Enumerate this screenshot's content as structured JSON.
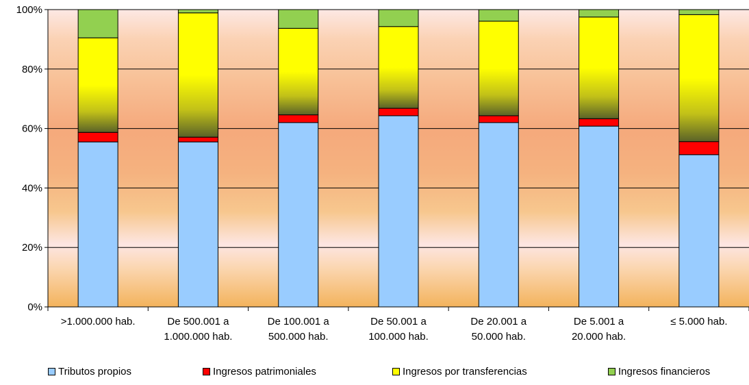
{
  "chart_data": {
    "type": "bar",
    "stacked": "percent",
    "title": "",
    "xlabel": "",
    "ylabel": "",
    "ylim": [
      0,
      100
    ],
    "yticks": [
      "0%",
      "20%",
      "40%",
      "60%",
      "80%",
      "100%"
    ],
    "grid": true,
    "legend_position": "bottom",
    "categories": [
      [
        ">1.000.000 hab."
      ],
      [
        "De 500.001 a",
        "1.000.000 hab."
      ],
      [
        "De 100.001 a",
        "500.000 hab."
      ],
      [
        "De 50.001 a",
        "100.000 hab."
      ],
      [
        "De 20.001 a",
        "50.000 hab."
      ],
      [
        "De 5.001 a",
        "20.000 hab."
      ],
      [
        "≤ 5.000 hab."
      ]
    ],
    "series": [
      {
        "name": "Tributos propios",
        "color": "#99ccff",
        "values": [
          55.5,
          55.5,
          62.0,
          64.3,
          62.0,
          60.8,
          51.2
        ]
      },
      {
        "name": "Ingresos patrimoniales",
        "color": "#ff0000",
        "values": [
          3.2,
          1.6,
          2.6,
          2.5,
          2.3,
          2.5,
          4.4
        ]
      },
      {
        "name": "Ingresos por transferencias",
        "color": "#ffff00",
        "values": [
          31.8,
          41.8,
          29.1,
          27.5,
          31.8,
          34.2,
          42.7
        ]
      },
      {
        "name": "Ingresos financieros",
        "color": "#92d050",
        "values": [
          9.5,
          1.1,
          6.3,
          5.7,
          3.9,
          2.5,
          1.7
        ]
      }
    ]
  }
}
